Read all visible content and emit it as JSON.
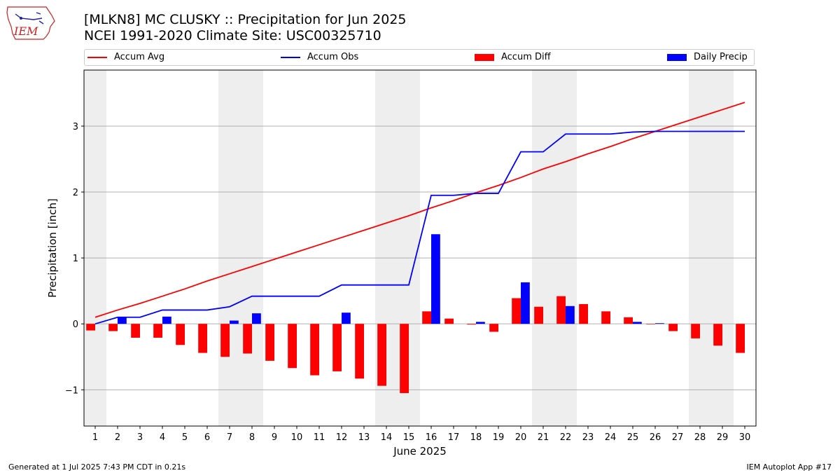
{
  "footer": {
    "generated": "Generated at 1 Jul 2025 7:43 PM CDT in 0.21s",
    "app": "IEM Autoplot App #17"
  },
  "logo": {
    "text": "IEM",
    "color": "#cc2222"
  },
  "chart_data": {
    "type": "bar",
    "title": "[MLKN8] MC CLUSKY :: Precipitation for Jun 2025",
    "subtitle": "NCEI 1991-2020 Climate Site: USC00325710",
    "xlabel": "June 2025",
    "ylabel": "Precipitation [inch]",
    "xlim": [
      0.5,
      30.5
    ],
    "ylim": [
      -1.55,
      3.85
    ],
    "yticks": [
      -1,
      0,
      1,
      2,
      3
    ],
    "ytick_labels": [
      "−1",
      "0",
      "1",
      "2",
      "3"
    ],
    "grid": "horizontal",
    "legend_placement": "top",
    "weekend_shading": [
      [
        1,
        1
      ],
      [
        7,
        8
      ],
      [
        14,
        15
      ],
      [
        21,
        22
      ],
      [
        28,
        29
      ]
    ],
    "categories": [
      1,
      2,
      3,
      4,
      5,
      6,
      7,
      8,
      9,
      10,
      11,
      12,
      13,
      14,
      15,
      16,
      17,
      18,
      19,
      20,
      21,
      22,
      23,
      24,
      25,
      26,
      27,
      28,
      29,
      30
    ],
    "series": [
      {
        "name": "Accum Avg",
        "kind": "line",
        "color": "#ff0000",
        "values": [
          0.1,
          0.21,
          0.31,
          0.42,
          0.53,
          0.65,
          0.76,
          0.87,
          0.98,
          1.09,
          1.2,
          1.31,
          1.42,
          1.53,
          1.64,
          1.76,
          1.87,
          1.99,
          2.1,
          2.22,
          2.35,
          2.46,
          2.58,
          2.69,
          2.81,
          2.92,
          3.03,
          3.14,
          3.25,
          3.36
        ]
      },
      {
        "name": "Accum Obs",
        "kind": "line",
        "color": "#0000ff",
        "values": [
          0.0,
          0.1,
          0.1,
          0.21,
          0.21,
          0.21,
          0.26,
          0.42,
          0.42,
          0.42,
          0.42,
          0.59,
          0.59,
          0.59,
          0.59,
          1.95,
          1.95,
          1.98,
          1.98,
          2.61,
          2.61,
          2.88,
          2.88,
          2.88,
          2.91,
          2.92,
          2.92,
          2.92,
          2.92,
          2.92
        ]
      },
      {
        "name": "Accum Diff",
        "kind": "bar",
        "color": "#ff0000",
        "values": [
          -0.1,
          -0.11,
          -0.21,
          -0.21,
          -0.32,
          -0.44,
          -0.5,
          -0.45,
          -0.56,
          -0.67,
          -0.78,
          -0.72,
          -0.83,
          -0.94,
          -1.05,
          0.19,
          0.08,
          -0.01,
          -0.12,
          0.39,
          0.26,
          0.42,
          0.3,
          0.19,
          0.1,
          0.0,
          -0.11,
          -0.22,
          -0.33,
          -0.44
        ]
      },
      {
        "name": "Daily Precip",
        "kind": "bar",
        "color": "#0000ff",
        "values": [
          0.0,
          0.1,
          0.0,
          0.11,
          0.0,
          0.0,
          0.05,
          0.16,
          0.0,
          0.0,
          0.0,
          0.17,
          0.0,
          0.0,
          0.0,
          1.36,
          0.0,
          0.03,
          0.0,
          0.63,
          0.0,
          0.27,
          0.0,
          0.0,
          0.03,
          0.01,
          0.0,
          0.0,
          0.0,
          0.0
        ]
      }
    ]
  }
}
